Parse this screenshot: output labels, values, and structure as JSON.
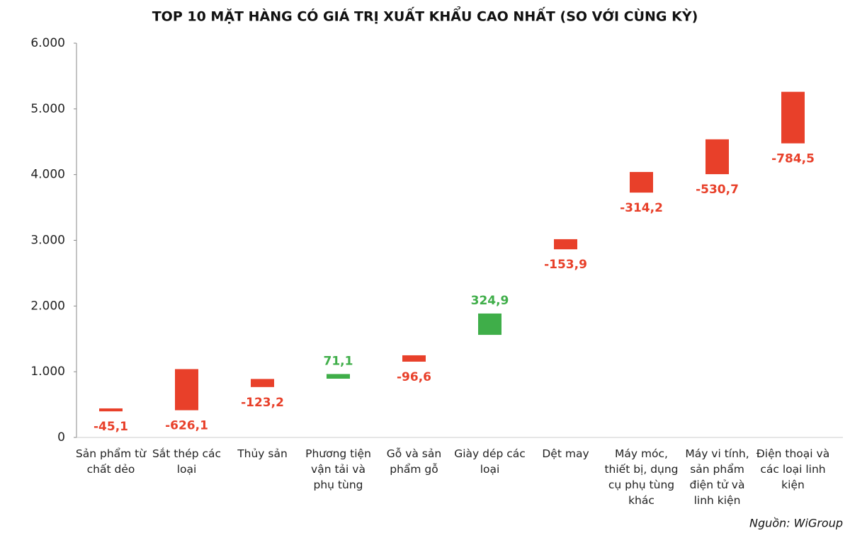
{
  "chart_data": {
    "type": "floating-bar",
    "title": "TOP 10 MẶT HÀNG CÓ GIÁ TRỊ XUẤT KHẨU CAO NHẤT (SO VỚI CÙNG KỲ)",
    "categories": [
      "Sản phẩm từ chất dẻo",
      "Sắt thép các loại",
      "Thủy sản",
      "Phương tiện vận tải và phụ tùng",
      "Gỗ và sản phẩm gỗ",
      "Giày dép các loại",
      "Dệt may",
      "Máy móc, thiết bị, dụng cụ phụ tùng khác",
      "Máy vi tính, sản phẩm điện tử và linh kiện",
      "Điện thoại và các loại linh kiện"
    ],
    "previous": [
      442,
      1040,
      890,
      894,
      1250,
      1561,
      3017,
      4040,
      4537,
      5260
    ],
    "values": [
      -45.1,
      -626.1,
      -123.2,
      71.1,
      -96.6,
      324.9,
      -153.9,
      -314.2,
      -530.7,
      -784.5
    ],
    "value_labels": [
      "-45,1",
      "-626,1",
      "-123,2",
      "71,1",
      "-96,6",
      "324,9",
      "-153,9",
      "-314,2",
      "-530,7",
      "-784,5"
    ],
    "increase_color": "#3fae49",
    "decrease_color": "#e8402a",
    "ylim": [
      0,
      6000
    ],
    "yticks": [
      0,
      {
        "value": 1000,
        "label": "1.000"
      },
      {
        "value": 2000,
        "label": "2.000"
      },
      {
        "value": 3000,
        "label": "3.000"
      },
      {
        "value": 4000,
        "label": "4.000"
      },
      {
        "value": 5000,
        "label": "5.000"
      },
      {
        "value": 6000,
        "label": "6.000"
      }
    ],
    "source": "Nguồn: WiGroup"
  }
}
